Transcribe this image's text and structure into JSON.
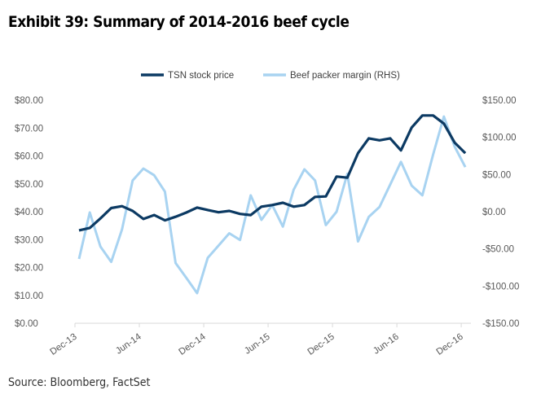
{
  "title": "Exhibit 39: Summary of 2014-2016 beef cycle",
  "source": "Source: Bloomberg, FactSet",
  "chart_data": {
    "type": "line",
    "title": "Exhibit 39: Summary of 2014-2016 beef cycle",
    "legend_position": "top",
    "grid": false,
    "x": [
      "Dec-13",
      "Jan-14",
      "Feb-14",
      "Mar-14",
      "Apr-14",
      "May-14",
      "Jun-14",
      "Jul-14",
      "Aug-14",
      "Sep-14",
      "Oct-14",
      "Nov-14",
      "Dec-14",
      "Jan-15",
      "Feb-15",
      "Mar-15",
      "Apr-15",
      "May-15",
      "Jun-15",
      "Jul-15",
      "Aug-15",
      "Sep-15",
      "Oct-15",
      "Nov-15",
      "Dec-15",
      "Jan-16",
      "Feb-16",
      "Mar-16",
      "Apr-16",
      "May-16",
      "Jun-16",
      "Jul-16",
      "Aug-16",
      "Sep-16",
      "Oct-16",
      "Nov-16",
      "Dec-16"
    ],
    "x_tick_labels": [
      "Dec-13",
      "Jun-14",
      "Dec-14",
      "Jun-15",
      "Dec-15",
      "Jun-16",
      "Dec-16"
    ],
    "y_left": {
      "ylim": [
        0,
        80
      ],
      "ticks": [
        "$0.00",
        "$10.00",
        "$20.00",
        "$30.00",
        "$40.00",
        "$50.00",
        "$60.00",
        "$70.00",
        "$80.00"
      ]
    },
    "y_right": {
      "ylim": [
        -150,
        150
      ],
      "ticks": [
        "-$150.00",
        "-$100.00",
        "-$50.00",
        "$0.00",
        "$50.00",
        "$100.00",
        "$150.00"
      ]
    },
    "series": [
      {
        "name": "TSN stock price",
        "axis": "left",
        "color": "#0c3a63",
        "values": [
          33.3,
          34.2,
          37.6,
          41.3,
          42.0,
          40.3,
          37.4,
          38.8,
          36.9,
          38.2,
          39.7,
          41.5,
          40.6,
          39.8,
          40.3,
          39.2,
          38.8,
          41.8,
          42.4,
          43.2,
          41.8,
          42.4,
          45.3,
          45.5,
          52.6,
          52.2,
          61.0,
          66.3,
          65.6,
          66.3,
          62.0,
          70.2,
          74.5,
          74.5,
          71.6,
          64.8,
          61.0
        ]
      },
      {
        "name": "Beef packer margin (RHS)",
        "axis": "right",
        "color": "#a8d3f1",
        "values": [
          -63.5,
          -1,
          -47,
          -67.5,
          -24,
          42,
          58,
          49,
          27,
          -69,
          -89,
          -109.5,
          -62,
          -45.6,
          -29,
          -38,
          22,
          -11,
          9,
          -20,
          29.5,
          57,
          42,
          -18,
          0,
          51,
          -40,
          -7,
          6.5,
          36.5,
          67,
          35,
          22,
          77,
          128,
          87.6,
          60
        ]
      }
    ]
  }
}
